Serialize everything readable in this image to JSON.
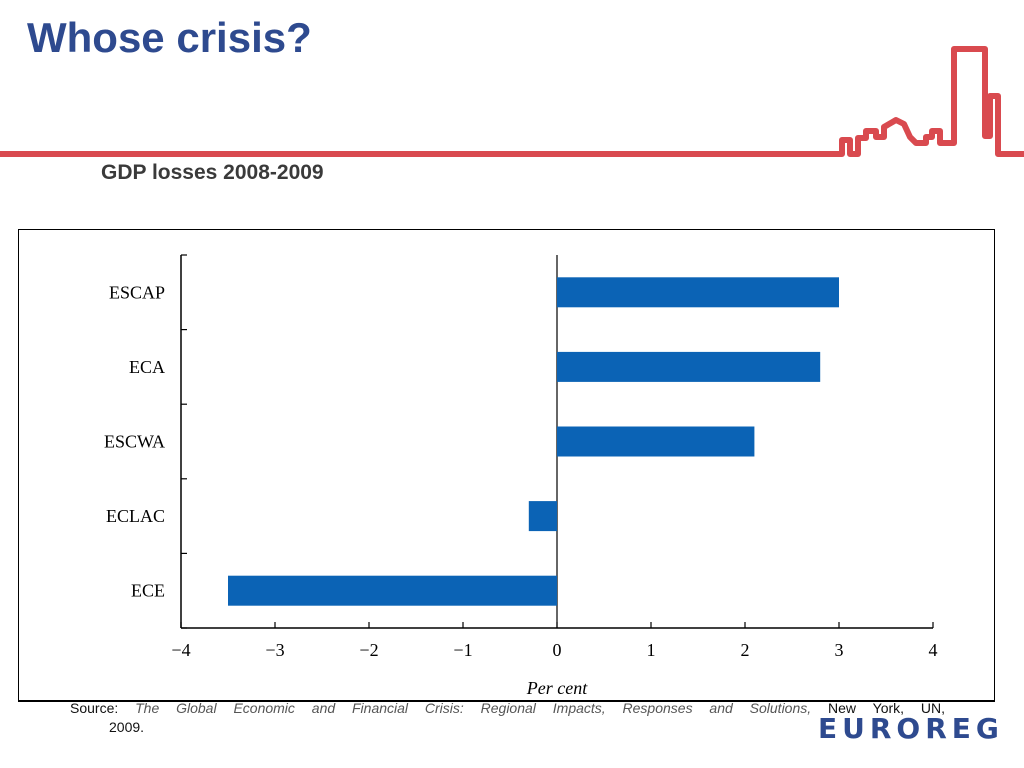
{
  "slide": {
    "title": "Whose crisis?",
    "subtitle": "GDP losses 2008-2009"
  },
  "colors": {
    "title": "#2e4a8f",
    "accent_red": "#d94a4f",
    "bar": "#0b63b5",
    "logo": "#2e4a8f"
  },
  "chart_data": {
    "type": "bar",
    "orientation": "horizontal",
    "categories": [
      "ESCAP",
      "ECA",
      "ESCWA",
      "ECLAC",
      "ECE"
    ],
    "values": [
      3.0,
      2.8,
      2.1,
      -0.3,
      -3.5
    ],
    "title": "",
    "xlabel": "Per cent",
    "ylabel": "",
    "xlim": [
      -4,
      4
    ],
    "xticks": [
      -4,
      -3,
      -2,
      -1,
      0,
      1,
      2,
      3,
      4
    ],
    "xtick_labels": [
      "−4",
      "−3",
      "−2",
      "−1",
      "0",
      "1",
      "2",
      "3",
      "4"
    ],
    "grid": false,
    "legend": "none"
  },
  "source": {
    "prefix": "Source:",
    "title": "The Global Economic and Financial Crisis: Regional Impacts, Responses and Solutions,",
    "publisher": "New York, UN,",
    "year": "2009."
  },
  "logo": {
    "text": "EUROREG",
    "icon": "skyline-logo-icon"
  }
}
